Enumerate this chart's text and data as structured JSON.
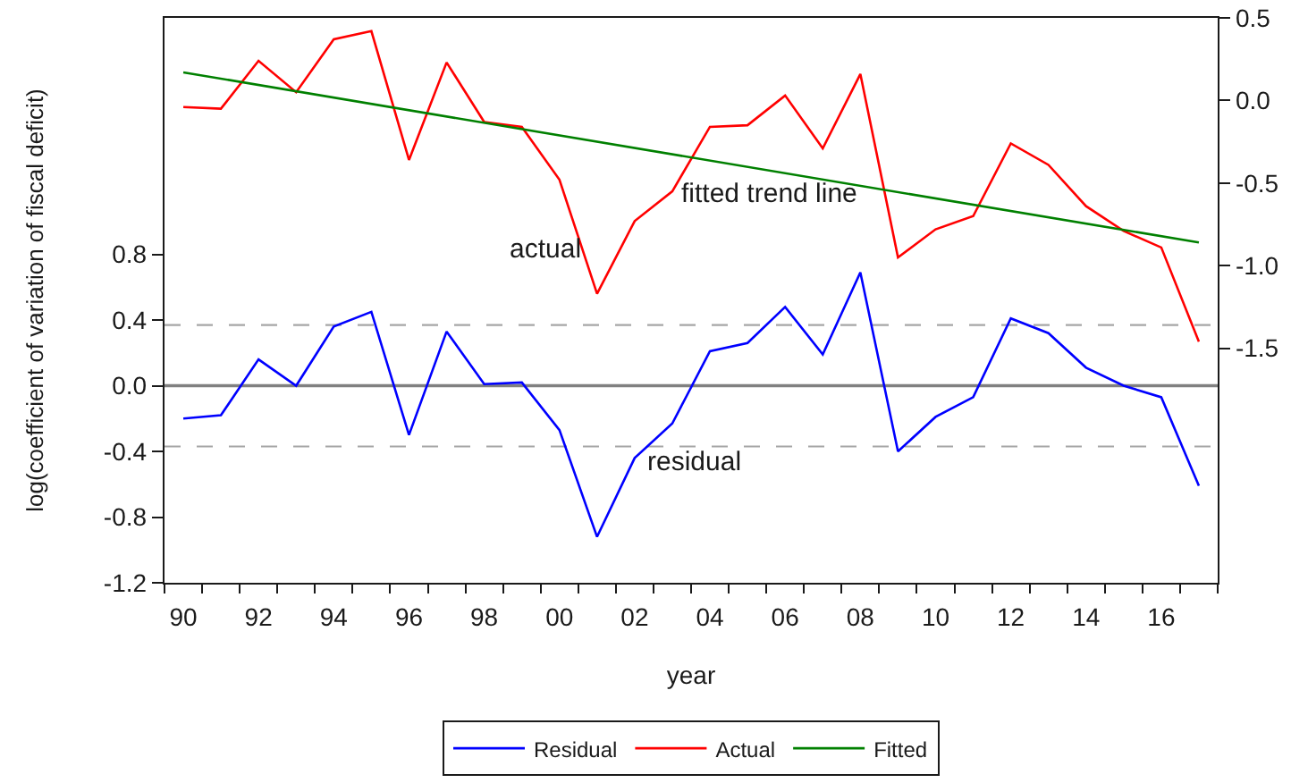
{
  "chart_data": {
    "type": "line",
    "xlabel": "year",
    "ylabel": "log(coefficient of variation of fiscal deficit)",
    "legend": "bottom",
    "x": [
      1990,
      1991,
      1992,
      1993,
      1994,
      1995,
      1996,
      1997,
      1998,
      1999,
      2000,
      2001,
      2002,
      2003,
      2004,
      2005,
      2006,
      2007,
      2008,
      2009,
      2010,
      2011,
      2012,
      2013,
      2014,
      2015,
      2016,
      2017
    ],
    "series": [
      {
        "name": "Residual",
        "color": "#0000ff",
        "values": [
          -0.2,
          -0.18,
          0.16,
          0.0,
          0.36,
          0.45,
          -0.3,
          0.33,
          0.01,
          0.02,
          -0.27,
          -0.92,
          -0.44,
          -0.23,
          0.21,
          0.26,
          0.48,
          0.19,
          0.69,
          -0.4,
          -0.19,
          -0.07,
          0.41,
          0.32,
          0.11,
          0.0,
          -0.07,
          -0.61
        ]
      },
      {
        "name": "Actual",
        "color": "#ff0000",
        "axis": "y2",
        "values": [
          -0.04,
          -0.05,
          0.24,
          0.05,
          0.37,
          0.42,
          -0.36,
          0.23,
          -0.13,
          -0.16,
          -0.48,
          -1.17,
          -0.73,
          -0.55,
          -0.16,
          -0.15,
          0.03,
          -0.29,
          0.16,
          -0.95,
          -0.78,
          -0.7,
          -0.26,
          -0.39,
          -0.64,
          -0.79,
          -0.89,
          -1.46
        ]
      },
      {
        "name": "Fitted",
        "color": "#008000",
        "axis": "y2",
        "x": [
          1990,
          2017
        ],
        "values": [
          0.17,
          -0.86
        ]
      }
    ],
    "xlim": [
      1989.5,
      2017.5
    ],
    "xticks": [
      {
        "value": 1990,
        "label": "90"
      },
      {
        "value": 1992,
        "label": "92"
      },
      {
        "value": 1994,
        "label": "94"
      },
      {
        "value": 1996,
        "label": "96"
      },
      {
        "value": 1998,
        "label": "98"
      },
      {
        "value": 2000,
        "label": "00"
      },
      {
        "value": 2002,
        "label": "02"
      },
      {
        "value": 2004,
        "label": "04"
      },
      {
        "value": 2006,
        "label": "06"
      },
      {
        "value": 2008,
        "label": "08"
      },
      {
        "value": 2010,
        "label": "10"
      },
      {
        "value": 2012,
        "label": "12"
      },
      {
        "value": 2014,
        "label": "14"
      },
      {
        "value": 2016,
        "label": "16"
      },
      {
        "value": 1989.5,
        "label": null
      },
      {
        "value": 1990.5,
        "label": null
      },
      {
        "value": 1991.5,
        "label": null
      },
      {
        "value": 1992.5,
        "label": null
      },
      {
        "value": 1993.5,
        "label": null
      },
      {
        "value": 1994.5,
        "label": null
      },
      {
        "value": 1995.5,
        "label": null
      },
      {
        "value": 1996.5,
        "label": null
      },
      {
        "value": 1997.5,
        "label": null
      },
      {
        "value": 1998.5,
        "label": null
      },
      {
        "value": 1999.5,
        "label": null
      },
      {
        "value": 2000.5,
        "label": null
      },
      {
        "value": 2001.5,
        "label": null
      },
      {
        "value": 2002.5,
        "label": null
      },
      {
        "value": 2003.5,
        "label": null
      },
      {
        "value": 2004.5,
        "label": null
      },
      {
        "value": 2005.5,
        "label": null
      },
      {
        "value": 2006.5,
        "label": null
      },
      {
        "value": 2007.5,
        "label": null
      },
      {
        "value": 2008.5,
        "label": null
      },
      {
        "value": 2009.5,
        "label": null
      },
      {
        "value": 2010.5,
        "label": null
      },
      {
        "value": 2011.5,
        "label": null
      },
      {
        "value": 2012.5,
        "label": null
      },
      {
        "value": 2013.5,
        "label": null
      },
      {
        "value": 2014.5,
        "label": null
      },
      {
        "value": 2015.5,
        "label": null
      },
      {
        "value": 2016.5,
        "label": null
      },
      {
        "value": 2017.5,
        "label": null
      }
    ],
    "ylim": [
      -1.2,
      2.24
    ],
    "yticks": [
      -1.2,
      -0.8,
      -0.4,
      {
        "value": 0,
        "label": "0.0"
      },
      0.4,
      0.8
    ],
    "y2lim": [
      -2.92,
      0.5
    ],
    "y2ticks": [
      -1.5,
      {
        "value": -1,
        "label": "-1.0"
      },
      -0.5,
      {
        "value": 0,
        "label": "0.0"
      },
      0.5
    ],
    "ref_lines": [
      {
        "axis": "y",
        "value": 0,
        "color": "#808080",
        "line_style": "solid"
      },
      {
        "axis": "y",
        "value": 0.37,
        "color": "#a6a6a6",
        "line_style": "dashed"
      },
      {
        "axis": "y",
        "value": -0.37,
        "color": "#a6a6a6",
        "line_style": "dashed"
      }
    ],
    "annotations": [
      "actual",
      "fitted trend line",
      "residual"
    ]
  }
}
